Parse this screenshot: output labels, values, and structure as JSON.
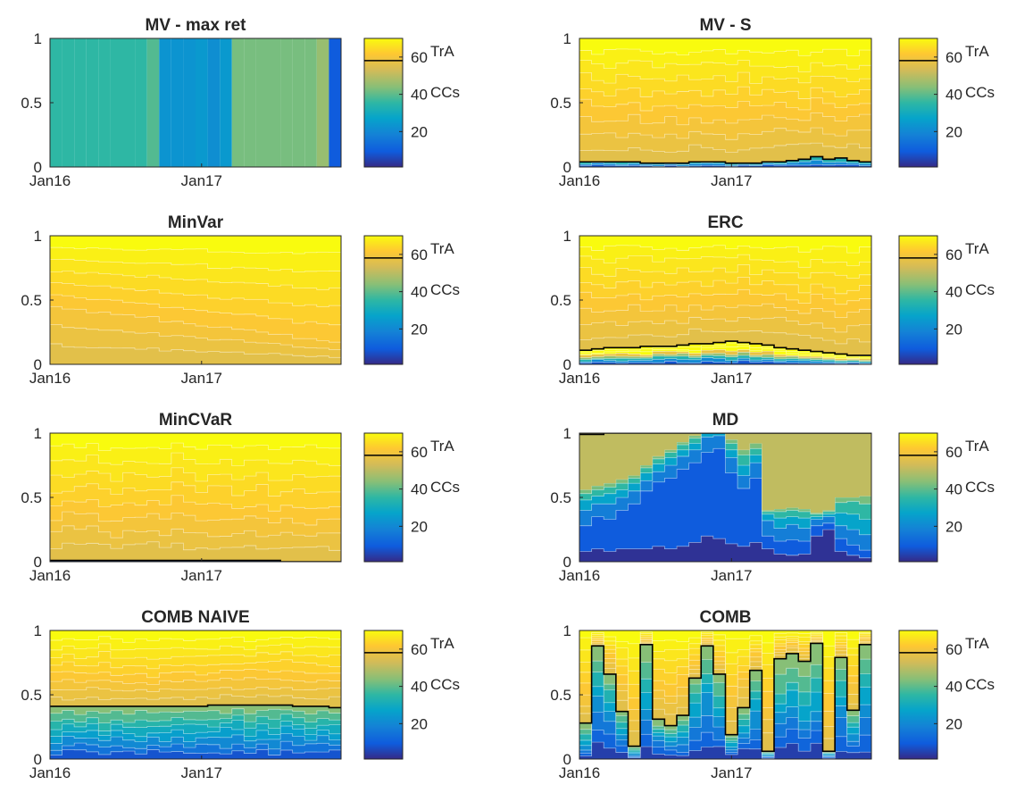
{
  "chart_data": [
    {
      "type": "area",
      "title": "MV - max ret",
      "x": [
        "Jan16",
        "Feb16",
        "Mar16",
        "Apr16",
        "May16",
        "Jun16",
        "Jul16",
        "Aug16",
        "Sep16",
        "Oct16",
        "Nov16",
        "Dec16",
        "Jan17",
        "Feb17",
        "Mar17",
        "Apr17",
        "May17",
        "Jun17",
        "Jul17",
        "Aug17",
        "Sep17",
        "Oct17",
        "Nov17",
        "Dec17"
      ],
      "xticks": [
        "Jan16",
        "Jan17"
      ],
      "ylim": [
        0,
        1
      ],
      "yticks": [
        "0",
        "0.5",
        "1"
      ],
      "profile": "maxret",
      "tra_share": [],
      "tra_share_labeled": false
    },
    {
      "type": "area",
      "title": "MV - S",
      "x": [
        "Jan16",
        "Feb16",
        "Mar16",
        "Apr16",
        "May16",
        "Jun16",
        "Jul16",
        "Aug16",
        "Sep16",
        "Oct16",
        "Nov16",
        "Dec16",
        "Jan17",
        "Feb17",
        "Mar17",
        "Apr17",
        "May17",
        "Jun17",
        "Jul17",
        "Aug17",
        "Sep17",
        "Oct17",
        "Nov17",
        "Dec17"
      ],
      "xticks": [
        "Jan16",
        "Jan17"
      ],
      "ylim": [
        0,
        1
      ],
      "yticks": [
        "0",
        "0.5",
        "1"
      ],
      "profile": "mvs",
      "tra_share": [
        0.04,
        0.04,
        0.04,
        0.04,
        0.04,
        0.03,
        0.03,
        0.03,
        0.03,
        0.04,
        0.04,
        0.04,
        0.03,
        0.03,
        0.03,
        0.04,
        0.04,
        0.05,
        0.06,
        0.08,
        0.06,
        0.07,
        0.05,
        0.04
      ]
    },
    {
      "type": "area",
      "title": "MinVar",
      "x": [
        "Jan16",
        "Feb16",
        "Mar16",
        "Apr16",
        "May16",
        "Jun16",
        "Jul16",
        "Aug16",
        "Sep16",
        "Oct16",
        "Nov16",
        "Dec16",
        "Jan17",
        "Feb17",
        "Mar17",
        "Apr17",
        "May17",
        "Jun17",
        "Jul17",
        "Aug17",
        "Sep17",
        "Oct17",
        "Nov17",
        "Dec17"
      ],
      "xticks": [
        "Jan16",
        "Jan17"
      ],
      "ylim": [
        0,
        1
      ],
      "yticks": [
        "0",
        "0.5",
        "1"
      ],
      "profile": "minvar",
      "tra_share": []
    },
    {
      "type": "area",
      "title": "ERC",
      "x": [
        "Jan16",
        "Feb16",
        "Mar16",
        "Apr16",
        "May16",
        "Jun16",
        "Jul16",
        "Aug16",
        "Sep16",
        "Oct16",
        "Nov16",
        "Dec16",
        "Jan17",
        "Feb17",
        "Mar17",
        "Apr17",
        "May17",
        "Jun17",
        "Jul17",
        "Aug17",
        "Sep17",
        "Oct17",
        "Nov17",
        "Dec17"
      ],
      "xticks": [
        "Jan16",
        "Jan17"
      ],
      "ylim": [
        0,
        1
      ],
      "yticks": [
        "0",
        "0.5",
        "1"
      ],
      "profile": "erc",
      "tra_share": [
        0.11,
        0.12,
        0.13,
        0.13,
        0.13,
        0.14,
        0.14,
        0.14,
        0.15,
        0.16,
        0.16,
        0.17,
        0.18,
        0.17,
        0.16,
        0.15,
        0.13,
        0.12,
        0.11,
        0.1,
        0.09,
        0.08,
        0.07,
        0.07
      ]
    },
    {
      "type": "area",
      "title": "MinCVaR",
      "x": [
        "Jan16",
        "Feb16",
        "Mar16",
        "Apr16",
        "May16",
        "Jun16",
        "Jul16",
        "Aug16",
        "Sep16",
        "Oct16",
        "Nov16",
        "Dec16",
        "Jan17",
        "Feb17",
        "Mar17",
        "Apr17",
        "May17",
        "Jun17",
        "Jul17",
        "Aug17",
        "Sep17",
        "Oct17",
        "Nov17",
        "Dec17"
      ],
      "xticks": [
        "Jan16",
        "Jan17"
      ],
      "ylim": [
        0,
        1
      ],
      "yticks": [
        "0",
        "0.5",
        "1"
      ],
      "profile": "mincvar",
      "tra_share": [
        0.01,
        0.01,
        0.01,
        0.01,
        0.01,
        0.01,
        0.01,
        0.01,
        0.01,
        0.01,
        0.01,
        0.01,
        0.01,
        0.01,
        0.01,
        0.01,
        0.01,
        0.01,
        0.01,
        0.0,
        0.0,
        0.0,
        0.0,
        0.0
      ]
    },
    {
      "type": "area",
      "title": "MD",
      "x": [
        "Jan16",
        "Feb16",
        "Mar16",
        "Apr16",
        "May16",
        "Jun16",
        "Jul16",
        "Aug16",
        "Sep16",
        "Oct16",
        "Nov16",
        "Dec16",
        "Jan17",
        "Feb17",
        "Mar17",
        "Apr17",
        "May17",
        "Jun17",
        "Jul17",
        "Aug17",
        "Sep17",
        "Oct17",
        "Nov17",
        "Dec17"
      ],
      "xticks": [
        "Jan16",
        "Jan17"
      ],
      "ylim": [
        0,
        1
      ],
      "yticks": [
        "0",
        "0.5",
        "1"
      ],
      "profile": "md",
      "tra_share": [
        0.99,
        0.99,
        1,
        1,
        1,
        1,
        1,
        1,
        1,
        1,
        1,
        1,
        1,
        1,
        1,
        1,
        1,
        1,
        1,
        1,
        1,
        1,
        1,
        1
      ]
    },
    {
      "type": "area",
      "title": "COMB NAIVE",
      "x": [
        "Jan16",
        "Feb16",
        "Mar16",
        "Apr16",
        "May16",
        "Jun16",
        "Jul16",
        "Aug16",
        "Sep16",
        "Oct16",
        "Nov16",
        "Dec16",
        "Jan17",
        "Feb17",
        "Mar17",
        "Apr17",
        "May17",
        "Jun17",
        "Jul17",
        "Aug17",
        "Sep17",
        "Oct17",
        "Nov17",
        "Dec17"
      ],
      "xticks": [
        "Jan16",
        "Jan17"
      ],
      "ylim": [
        0,
        1
      ],
      "yticks": [
        "0",
        "0.5",
        "1"
      ],
      "profile": "naive",
      "tra_share": [
        0.41,
        0.41,
        0.41,
        0.41,
        0.41,
        0.41,
        0.41,
        0.41,
        0.41,
        0.41,
        0.41,
        0.41,
        0.41,
        0.42,
        0.42,
        0.42,
        0.42,
        0.42,
        0.42,
        0.42,
        0.41,
        0.41,
        0.41,
        0.4
      ]
    },
    {
      "type": "area",
      "title": "COMB",
      "x": [
        "Jan16",
        "Feb16",
        "Mar16",
        "Apr16",
        "May16",
        "Jun16",
        "Jul16",
        "Aug16",
        "Sep16",
        "Oct16",
        "Nov16",
        "Dec16",
        "Jan17",
        "Feb17",
        "Mar17",
        "Apr17",
        "May17",
        "Jun17",
        "Jul17",
        "Aug17",
        "Sep17",
        "Oct17",
        "Nov17",
        "Dec17"
      ],
      "xticks": [
        "Jan16",
        "Jan17"
      ],
      "ylim": [
        0,
        1
      ],
      "yticks": [
        "0",
        "0.5",
        "1"
      ],
      "profile": "comb",
      "tra_share": [
        0.28,
        0.88,
        0.66,
        0.37,
        0.1,
        0.89,
        0.31,
        0.26,
        0.34,
        0.63,
        0.88,
        0.66,
        0.19,
        0.4,
        0.69,
        0.06,
        0.78,
        0.82,
        0.76,
        0.9,
        0.06,
        0.79,
        0.38,
        0.89
      ]
    }
  ],
  "colorbar": {
    "ticks": [
      "20",
      "40",
      "60"
    ],
    "range": [
      1,
      70
    ],
    "threshold": 60,
    "label_upper": "TrA",
    "label_lower": "CCs"
  },
  "colors": {
    "tra_line": "#000000",
    "axis": "#262626"
  }
}
